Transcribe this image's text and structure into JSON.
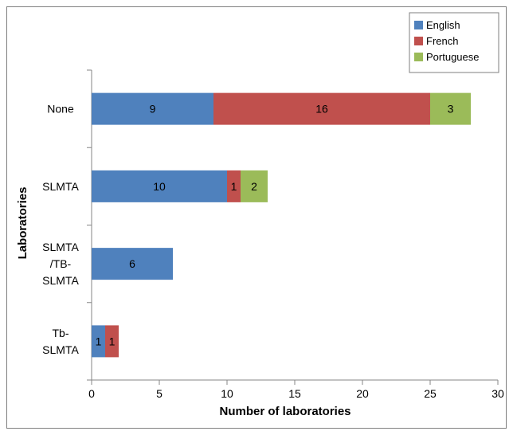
{
  "chart_data": {
    "type": "bar",
    "orientation": "horizontal",
    "stacked": true,
    "categories": [
      "None",
      "SLMTA",
      "SLMTA\n/TB-\nSLMTA",
      "Tb-\nSLMTA"
    ],
    "series": [
      {
        "name": "English",
        "color": "#4F81BD",
        "values": [
          9,
          10,
          6,
          1
        ]
      },
      {
        "name": "French",
        "color": "#C0504D",
        "values": [
          16,
          1,
          0,
          1
        ]
      },
      {
        "name": "Portuguese",
        "color": "#9BBB59",
        "values": [
          3,
          2,
          0,
          0
        ]
      }
    ],
    "xlabel": "Number of laboratories",
    "ylabel": "Laboratories",
    "xlim": [
      0,
      30
    ],
    "xticks": [
      0,
      5,
      10,
      15,
      20,
      25,
      30
    ],
    "grid": false,
    "legend_position": "top-right"
  }
}
